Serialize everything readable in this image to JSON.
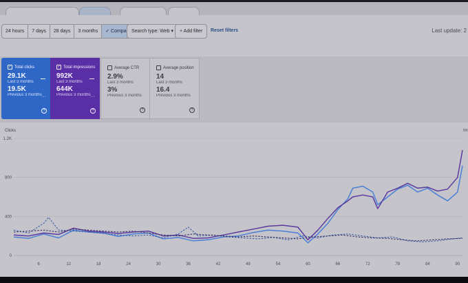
{
  "filter_bar": {
    "date_ranges": [
      "24 hours",
      "7 days",
      "28 days",
      "3 months"
    ],
    "compare_label": "Compare",
    "compare_check": "✓",
    "search_type": "Search type: Web",
    "search_type_caret": "▾",
    "add_filter": "Add filter",
    "add_filter_plus": "+",
    "reset_filters": "Reset filters",
    "last_update": "Last update: 2"
  },
  "cards": {
    "clicks": {
      "title": "Total clicks",
      "current": "29.1K",
      "current_period": "Last 3 months",
      "previous": "19.5K",
      "previous_period": "Previous 3 months",
      "checked": true
    },
    "impressions": {
      "title": "Total impressions",
      "current": "992K",
      "current_period": "Last 3 months",
      "previous": "644K",
      "previous_period": "Previous 3 months",
      "checked": true
    },
    "ctr": {
      "title": "Average CTR",
      "current": "2.9%",
      "current_period": "Last 3 months",
      "previous": "3%",
      "previous_period": "Previous 3 months",
      "checked": false
    },
    "position": {
      "title": "Average position",
      "current": "14",
      "current_period": "Last 3 months",
      "previous": "16.4",
      "previous_period": "Previous 3 months",
      "checked": false
    },
    "check_glyph": "✓",
    "info_glyph": "?"
  },
  "chart_data": {
    "type": "line",
    "ylabel": "Clicks",
    "right_label_partial": "Im",
    "ylim": [
      0,
      1200
    ],
    "y_ticks": [
      "0",
      "400",
      "800",
      "1.2K"
    ],
    "y_tick_values": [
      0,
      400,
      800,
      1200
    ],
    "x_ticks": [
      "6",
      "12",
      "18",
      "24",
      "30",
      "36",
      "42",
      "48",
      "54",
      "60",
      "66",
      "72",
      "78",
      "84",
      "90"
    ],
    "x_tick_values": [
      6,
      12,
      18,
      24,
      30,
      36,
      42,
      48,
      54,
      60,
      66,
      72,
      78,
      84,
      90
    ],
    "xlim": [
      1,
      91
    ],
    "colors": {
      "clicks": "#4a7fd6",
      "impressions": "#5b3a9e",
      "clicks_prev": "#3a5fa8",
      "impressions_prev": "#3e3366"
    },
    "series": [
      {
        "key": "clicks",
        "style": "solid",
        "points": [
          [
            1,
            190
          ],
          [
            4,
            175
          ],
          [
            7,
            220
          ],
          [
            10,
            180
          ],
          [
            13,
            260
          ],
          [
            16,
            240
          ],
          [
            19,
            230
          ],
          [
            22,
            195
          ],
          [
            25,
            220
          ],
          [
            28,
            230
          ],
          [
            31,
            170
          ],
          [
            34,
            185
          ],
          [
            37,
            150
          ],
          [
            40,
            160
          ],
          [
            43,
            190
          ],
          [
            46,
            200
          ],
          [
            49,
            235
          ],
          [
            52,
            260
          ],
          [
            55,
            250
          ],
          [
            58,
            230
          ],
          [
            60,
            130
          ],
          [
            62,
            220
          ],
          [
            64,
            330
          ],
          [
            66,
            470
          ],
          [
            68,
            580
          ],
          [
            69,
            690
          ],
          [
            71,
            710
          ],
          [
            73,
            650
          ],
          [
            74,
            520
          ],
          [
            76,
            600
          ],
          [
            78,
            680
          ],
          [
            80,
            720
          ],
          [
            82,
            650
          ],
          [
            84,
            690
          ],
          [
            86,
            620
          ],
          [
            88,
            560
          ],
          [
            90,
            650
          ],
          [
            91,
            920
          ]
        ]
      },
      {
        "key": "impressions",
        "style": "solid",
        "points": [
          [
            1,
            210
          ],
          [
            4,
            200
          ],
          [
            7,
            230
          ],
          [
            10,
            215
          ],
          [
            13,
            280
          ],
          [
            16,
            250
          ],
          [
            19,
            240
          ],
          [
            22,
            225
          ],
          [
            25,
            240
          ],
          [
            28,
            250
          ],
          [
            31,
            200
          ],
          [
            34,
            210
          ],
          [
            37,
            175
          ],
          [
            40,
            180
          ],
          [
            43,
            210
          ],
          [
            46,
            240
          ],
          [
            49,
            270
          ],
          [
            52,
            300
          ],
          [
            55,
            310
          ],
          [
            58,
            290
          ],
          [
            60,
            160
          ],
          [
            62,
            260
          ],
          [
            64,
            380
          ],
          [
            66,
            490
          ],
          [
            68,
            560
          ],
          [
            69,
            600
          ],
          [
            71,
            620
          ],
          [
            73,
            600
          ],
          [
            74,
            480
          ],
          [
            76,
            650
          ],
          [
            78,
            690
          ],
          [
            80,
            740
          ],
          [
            82,
            690
          ],
          [
            84,
            700
          ],
          [
            86,
            660
          ],
          [
            88,
            680
          ],
          [
            90,
            800
          ],
          [
            91,
            1080
          ]
        ]
      },
      {
        "key": "clicks_prev",
        "style": "dashed",
        "points": [
          [
            1,
            260
          ],
          [
            4,
            230
          ],
          [
            7,
            330
          ],
          [
            8,
            390
          ],
          [
            10,
            260
          ],
          [
            13,
            250
          ],
          [
            16,
            240
          ],
          [
            19,
            225
          ],
          [
            22,
            210
          ],
          [
            25,
            200
          ],
          [
            28,
            210
          ],
          [
            31,
            180
          ],
          [
            34,
            220
          ],
          [
            36,
            290
          ],
          [
            38,
            200
          ],
          [
            41,
            210
          ],
          [
            44,
            190
          ],
          [
            47,
            180
          ],
          [
            50,
            170
          ],
          [
            53,
            185
          ],
          [
            56,
            160
          ],
          [
            59,
            200
          ],
          [
            62,
            180
          ],
          [
            65,
            210
          ],
          [
            68,
            220
          ],
          [
            71,
            200
          ],
          [
            74,
            180
          ],
          [
            77,
            190
          ],
          [
            80,
            150
          ],
          [
            83,
            140
          ],
          [
            86,
            150
          ],
          [
            89,
            170
          ],
          [
            91,
            180
          ]
        ]
      },
      {
        "key": "impressions_prev",
        "style": "dashed",
        "points": [
          [
            1,
            240
          ],
          [
            4,
            250
          ],
          [
            7,
            260
          ],
          [
            10,
            240
          ],
          [
            13,
            270
          ],
          [
            16,
            260
          ],
          [
            19,
            250
          ],
          [
            22,
            240
          ],
          [
            25,
            250
          ],
          [
            28,
            230
          ],
          [
            31,
            210
          ],
          [
            34,
            200
          ],
          [
            37,
            220
          ],
          [
            40,
            210
          ],
          [
            43,
            200
          ],
          [
            46,
            190
          ],
          [
            49,
            200
          ],
          [
            52,
            190
          ],
          [
            55,
            180
          ],
          [
            58,
            170
          ],
          [
            61,
            190
          ],
          [
            64,
            200
          ],
          [
            67,
            210
          ],
          [
            70,
            190
          ],
          [
            73,
            180
          ],
          [
            76,
            175
          ],
          [
            79,
            160
          ],
          [
            82,
            150
          ],
          [
            85,
            160
          ],
          [
            88,
            170
          ],
          [
            91,
            175
          ]
        ]
      }
    ]
  }
}
